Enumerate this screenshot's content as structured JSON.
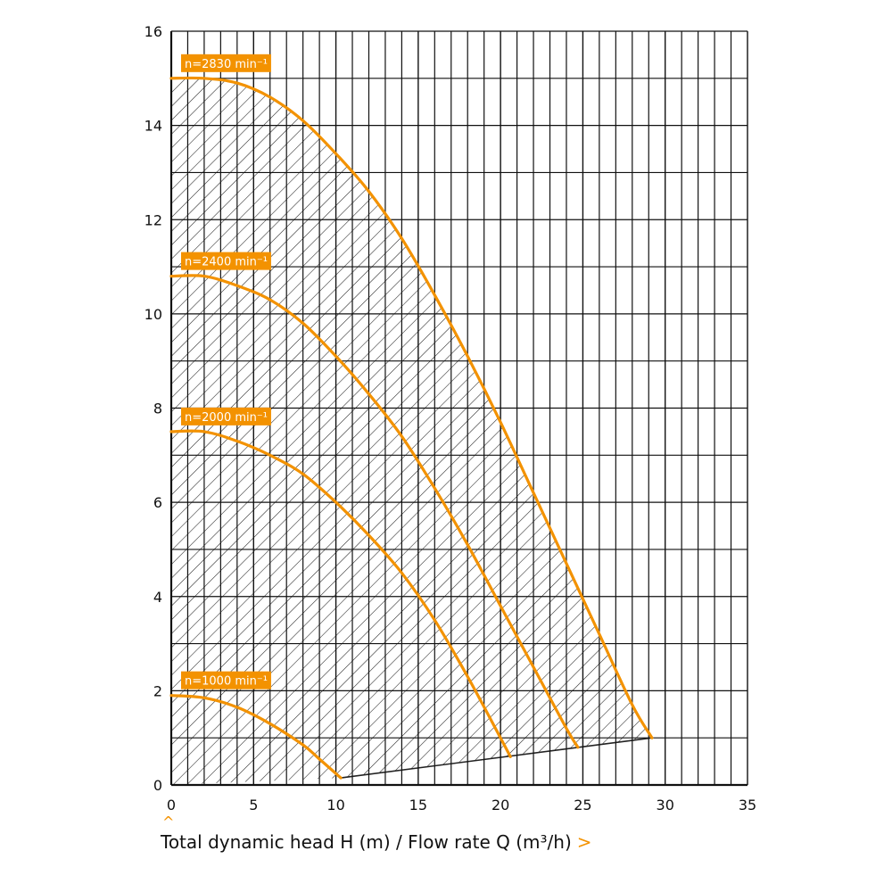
{
  "colors": {
    "curve": "#F39200",
    "grid": "#111111",
    "hatch": "#222222",
    "label_bg": "#F39200",
    "label_text": "#FFFFFF"
  },
  "caption": {
    "text": "Total dynamic head H (m) / Flow rate Q (m³/h)",
    "arrow_icon": "chevron-right-icon",
    "caret_icon": "chevron-up-icon"
  },
  "chart_data": {
    "type": "line",
    "xlim": [
      0,
      35
    ],
    "ylim": [
      0,
      16
    ],
    "x_ticks": [
      0,
      5,
      10,
      15,
      20,
      25,
      30,
      35
    ],
    "y_ticks": [
      0,
      2,
      4,
      6,
      8,
      10,
      12,
      14,
      16
    ],
    "x_tick_labels": [
      "0",
      "5",
      "10",
      "15",
      "20",
      "25",
      "30",
      "35"
    ],
    "y_tick_labels": [
      "0",
      "2",
      "4",
      "6",
      "8",
      "10",
      "12",
      "14",
      "16"
    ],
    "grid": true,
    "grid_minor_x_step": 1,
    "grid_minor_y_step": 1,
    "series": [
      {
        "name": "n=2830 min⁻¹",
        "x": [
          0,
          2,
          4,
          6,
          8,
          10,
          12,
          14,
          16,
          18,
          20,
          22,
          24,
          26,
          28,
          29.2
        ],
        "y": [
          15.0,
          15.0,
          14.9,
          14.6,
          14.1,
          13.4,
          12.6,
          11.6,
          10.4,
          9.1,
          7.7,
          6.2,
          4.7,
          3.2,
          1.7,
          1.0
        ]
      },
      {
        "name": "n=2400 min⁻¹",
        "x": [
          0,
          2,
          4,
          6,
          8,
          10,
          12,
          14,
          16,
          18,
          20,
          22,
          24,
          24.7
        ],
        "y": [
          10.8,
          10.8,
          10.6,
          10.3,
          9.8,
          9.1,
          8.3,
          7.4,
          6.3,
          5.1,
          3.8,
          2.5,
          1.2,
          0.8
        ]
      },
      {
        "name": "n=2000 min⁻¹",
        "x": [
          0,
          2,
          4,
          6,
          8,
          10,
          12,
          14,
          16,
          18,
          20,
          20.6
        ],
        "y": [
          7.5,
          7.5,
          7.3,
          7.0,
          6.6,
          6.0,
          5.3,
          4.5,
          3.5,
          2.3,
          1.0,
          0.6
        ]
      },
      {
        "name": "n=1000 min⁻¹",
        "x": [
          0,
          2,
          4,
          6,
          8,
          9,
          10.3
        ],
        "y": [
          1.9,
          1.85,
          1.65,
          1.3,
          0.85,
          0.55,
          0.15
        ]
      }
    ],
    "operating_range_lower_boundary": {
      "x": [
        10.3,
        29.2
      ],
      "y": [
        0.15,
        1.0
      ]
    }
  }
}
